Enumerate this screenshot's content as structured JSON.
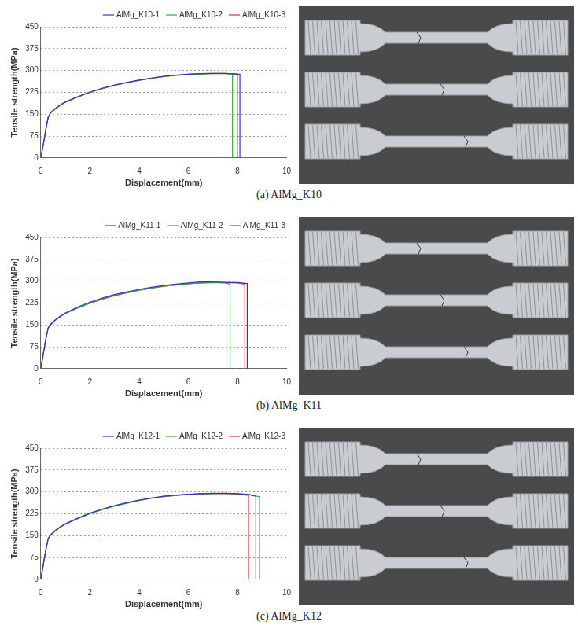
{
  "chart_data": [
    {
      "type": "line",
      "title": "(a) AlMg_K10",
      "x_label": "Displacement(mm)",
      "y_label": "Tensile strength(MPa)",
      "xlim": [
        0,
        10
      ],
      "xticks": [
        0,
        2,
        4,
        6,
        8,
        10
      ],
      "ylim": [
        0,
        450
      ],
      "yticks": [
        0,
        75,
        150,
        225,
        300,
        375,
        450
      ],
      "grid": "y",
      "legend": "upper right",
      "series": [
        {
          "name": "AlMg_K10-1",
          "color": "#3333cc",
          "x": [
            0,
            0.1,
            0.2,
            0.3,
            0.4,
            0.6,
            0.8,
            1,
            1.5,
            2,
            2.5,
            3,
            3.5,
            4,
            4.5,
            5,
            5.5,
            6,
            6.5,
            7,
            7.5,
            8.1,
            8.1
          ],
          "values": [
            0,
            45,
            95,
            140,
            155,
            170,
            182,
            192,
            210,
            226,
            239,
            250,
            259,
            267,
            274,
            280,
            284,
            287,
            289,
            290,
            290,
            287,
            0
          ]
        },
        {
          "name": "AlMg_K10-2",
          "color": "#33aa33",
          "x": [
            0,
            0.1,
            0.2,
            0.3,
            0.4,
            0.6,
            0.8,
            1,
            1.5,
            2,
            2.5,
            3,
            3.5,
            4,
            4.5,
            5,
            5.5,
            6,
            6.5,
            7,
            7.5,
            7.8,
            7.8
          ],
          "values": [
            0,
            44,
            94,
            139,
            154,
            169,
            181,
            191,
            209,
            225,
            238,
            249,
            258,
            266,
            273,
            279,
            283,
            286,
            288,
            289,
            289,
            288,
            0
          ]
        },
        {
          "name": "AlMg_K10-3",
          "color": "#dd3333",
          "x": [
            0,
            0.1,
            0.2,
            0.3,
            0.4,
            0.6,
            0.8,
            1,
            1.5,
            2,
            2.5,
            3,
            3.5,
            4,
            4.5,
            5,
            5.5,
            6,
            6.5,
            7,
            7.5,
            8,
            8
          ],
          "values": [
            0,
            46,
            96,
            140,
            155,
            170,
            181,
            191,
            209,
            225,
            238,
            249,
            258,
            266,
            273,
            279,
            284,
            287,
            289,
            290,
            290,
            288,
            0
          ]
        }
      ]
    },
    {
      "type": "line",
      "title": "(b) AlMg_K11",
      "x_label": "Displacement(mm)",
      "y_label": "Tensile strength(MPa)",
      "xlim": [
        0,
        10
      ],
      "xticks": [
        0,
        2,
        4,
        6,
        8,
        10
      ],
      "ylim": [
        0,
        450
      ],
      "yticks": [
        0,
        75,
        150,
        225,
        300,
        375,
        450
      ],
      "grid": "y",
      "legend": "upper right",
      "series": [
        {
          "name": "AlMg_K11-1",
          "color": "#3333cc",
          "x": [
            0,
            0.1,
            0.2,
            0.3,
            0.4,
            0.6,
            0.8,
            1,
            1.5,
            2,
            2.5,
            3,
            3.5,
            4,
            4.5,
            5,
            5.5,
            6,
            6.5,
            7,
            7.5,
            8,
            8.4,
            8.4
          ],
          "values": [
            0,
            50,
            100,
            140,
            152,
            168,
            180,
            191,
            211,
            228,
            242,
            254,
            263,
            272,
            279,
            285,
            290,
            294,
            297,
            297,
            296,
            295,
            292,
            0
          ]
        },
        {
          "name": "AlMg_K11-2",
          "color": "#33aa33",
          "x": [
            0,
            0.1,
            0.2,
            0.3,
            0.4,
            0.6,
            0.8,
            1,
            1.5,
            2,
            2.5,
            3,
            3.5,
            4,
            4.5,
            5,
            5.5,
            6,
            6.5,
            7,
            7.5,
            7.7,
            7.7
          ],
          "values": [
            0,
            49,
            99,
            139,
            151,
            167,
            179,
            189,
            208,
            225,
            239,
            251,
            260,
            269,
            276,
            282,
            287,
            291,
            294,
            295,
            294,
            290,
            0
          ]
        },
        {
          "name": "AlMg_K11-3",
          "color": "#dd3333",
          "x": [
            0,
            0.1,
            0.2,
            0.3,
            0.4,
            0.6,
            0.8,
            1,
            1.5,
            2,
            2.5,
            3,
            3.5,
            4,
            4.5,
            5,
            5.5,
            6,
            6.5,
            7,
            7.5,
            8,
            8.3,
            8.3
          ],
          "values": [
            0,
            50,
            100,
            140,
            152,
            167,
            179,
            189,
            208,
            224,
            238,
            250,
            260,
            269,
            276,
            282,
            287,
            291,
            294,
            295,
            295,
            294,
            290,
            0
          ]
        }
      ]
    },
    {
      "type": "line",
      "title": "(c) AlMg_K12",
      "x_label": "Displacement(mm)",
      "y_label": "Tensile strength(MPa)",
      "xlim": [
        0,
        10
      ],
      "xticks": [
        0,
        2,
        4,
        6,
        8,
        10
      ],
      "ylim": [
        0,
        450
      ],
      "yticks": [
        0,
        75,
        150,
        225,
        300,
        375,
        450
      ],
      "grid": "y",
      "legend": "upper right",
      "series": [
        {
          "name": "AlMg_K12-1",
          "color": "#3333cc",
          "x": [
            0,
            0.1,
            0.2,
            0.3,
            0.4,
            0.6,
            0.8,
            1,
            1.5,
            2,
            2.5,
            3,
            3.5,
            4,
            4.5,
            5,
            5.5,
            6,
            6.5,
            7,
            7.5,
            8,
            8.5,
            8.75,
            8.75
          ],
          "values": [
            0,
            50,
            100,
            140,
            152,
            168,
            180,
            190,
            210,
            227,
            241,
            253,
            263,
            272,
            279,
            285,
            289,
            292,
            294,
            295,
            295,
            294,
            290,
            285,
            0
          ]
        },
        {
          "name": "AlMg_K12-2",
          "color": "#33aa33",
          "x": [
            0,
            0.1,
            0.2,
            0.3,
            0.4,
            0.6,
            0.8,
            1,
            1.5,
            2,
            2.5,
            3,
            3.5,
            4,
            4.5,
            5,
            5.5,
            6,
            6.5,
            7,
            7.5,
            8,
            8.5,
            8.9,
            8.9
          ],
          "values": [
            0,
            49,
            99,
            139,
            151,
            167,
            179,
            189,
            208,
            225,
            239,
            251,
            261,
            270,
            278,
            284,
            288,
            291,
            293,
            294,
            295,
            294,
            291,
            283,
            0
          ]
        },
        {
          "name": "AlMg_K12-3",
          "color": "#dd3333",
          "x": [
            0,
            0.1,
            0.2,
            0.3,
            0.4,
            0.6,
            0.8,
            1,
            1.5,
            2,
            2.5,
            3,
            3.5,
            4,
            4.5,
            5,
            5.5,
            6,
            6.5,
            7,
            7.5,
            8,
            8.45,
            8.45
          ],
          "values": [
            0,
            50,
            100,
            140,
            152,
            168,
            180,
            190,
            209,
            226,
            240,
            252,
            262,
            271,
            278,
            284,
            288,
            291,
            293,
            294,
            294,
            293,
            288,
            0
          ]
        }
      ]
    }
  ]
}
